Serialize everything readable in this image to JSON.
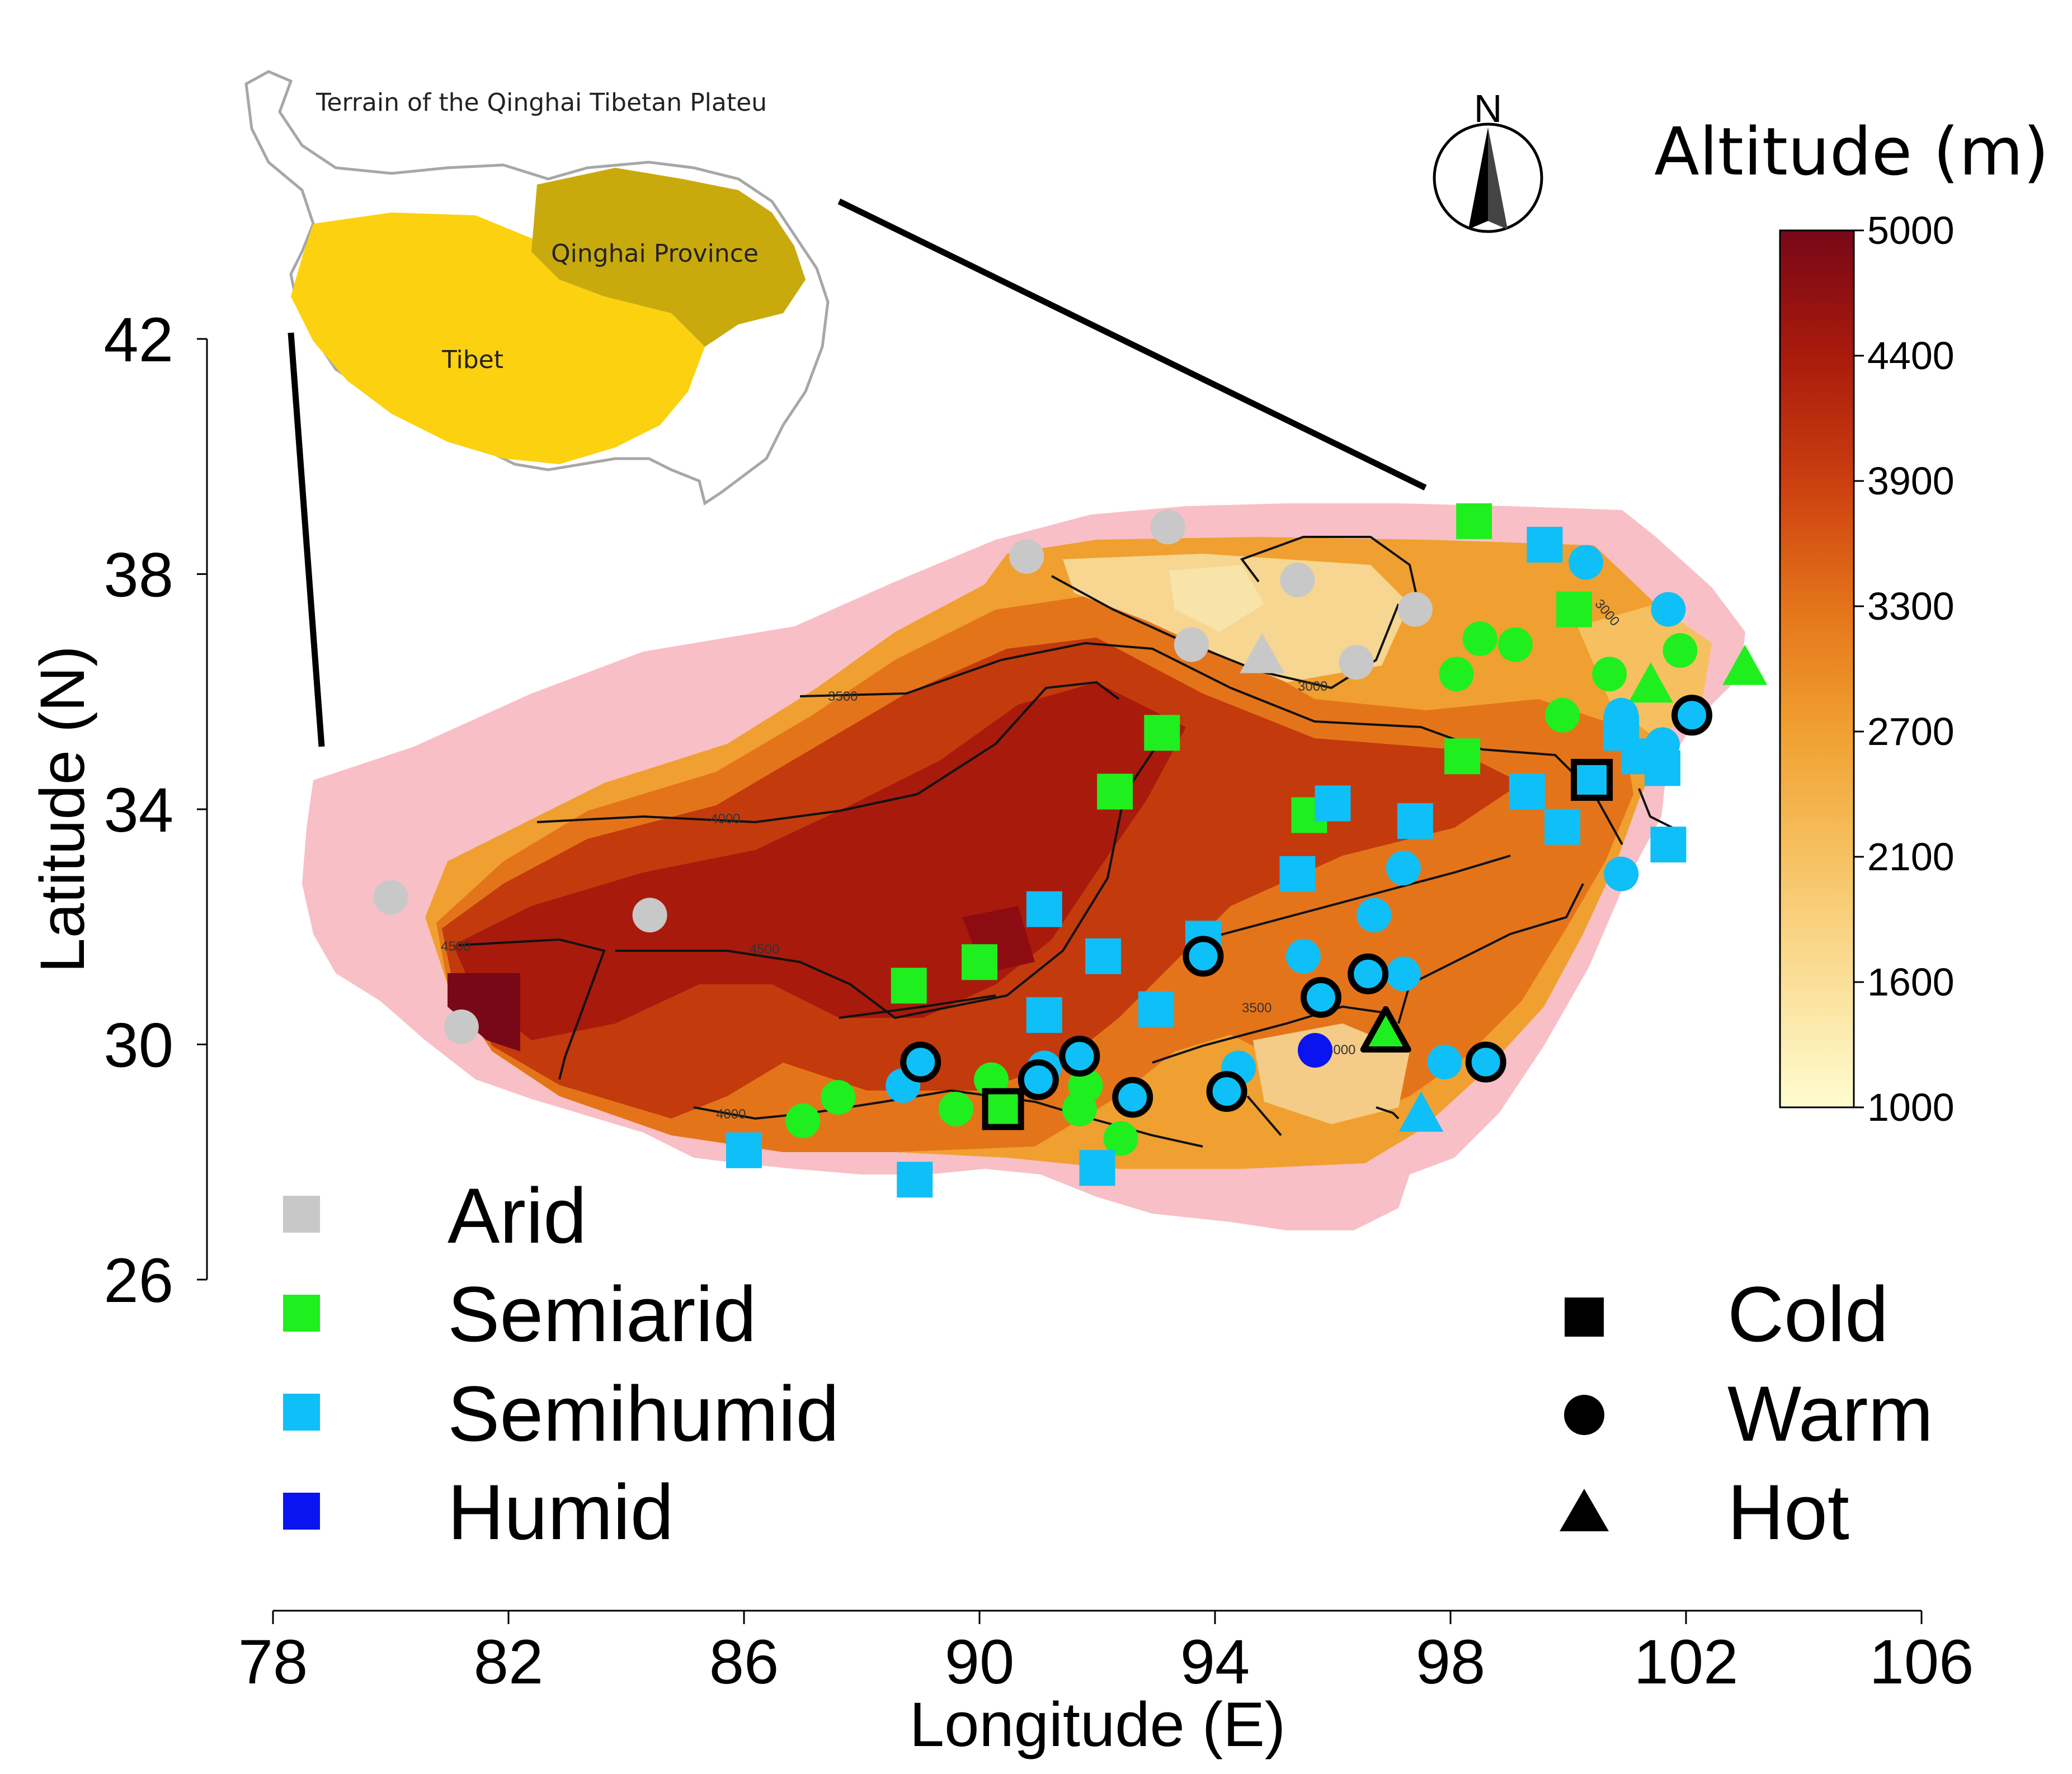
{
  "map": {
    "x_axis": {
      "title": "Longitude (E)",
      "ticks": [
        "78",
        "82",
        "86",
        "90",
        "94",
        "98",
        "102",
        "106"
      ],
      "tick_values": [
        78,
        82,
        86,
        90,
        94,
        98,
        102,
        106
      ]
    },
    "y_axis": {
      "title": "Latitude (N)",
      "ticks": [
        "26",
        "30",
        "34",
        "38",
        "42"
      ],
      "tick_values": [
        26,
        30,
        34,
        38,
        42
      ]
    },
    "colorbar": {
      "title": "Altitude (m)",
      "labels": [
        "1000",
        "1600",
        "2100",
        "2700",
        "3300",
        "3900",
        "4400",
        "5000"
      ],
      "colors": [
        "#fefcd0",
        "#fbe09a",
        "#f6c060",
        "#f0a030",
        "#e4741a",
        "#cc4010",
        "#a81a0c",
        "#780818"
      ]
    },
    "north_arrow_label": "N",
    "contour_labels": [
      "3500",
      "4000",
      "4500",
      "4500",
      "4000",
      "3000",
      "3000",
      "3500",
      "3000"
    ],
    "inset": {
      "title": "Terrain of the Qinghai Tibetan Plateu",
      "regions": [
        {
          "name": "Qinghai Province",
          "color": "#c9aa0c"
        },
        {
          "name": "Tibet",
          "color": "#fcd10f"
        }
      ]
    }
  },
  "legend": {
    "climate": [
      {
        "label": "Arid",
        "color": "#c8c8c8"
      },
      {
        "label": "Semiarid",
        "color": "#1fef1f"
      },
      {
        "label": "Semihumid",
        "color": "#0fbff7"
      },
      {
        "label": "Humid",
        "color": "#0a14f0"
      }
    ],
    "temperature": [
      {
        "label": "Cold",
        "shape": "square"
      },
      {
        "label": "Warm",
        "shape": "circle"
      },
      {
        "label": "Hot",
        "shape": "triangle"
      }
    ]
  },
  "chart_data": {
    "type": "scatter",
    "title": "",
    "xlabel": "Longitude (E)",
    "ylabel": "Latitude (N)",
    "xlim": [
      78,
      106
    ],
    "ylim": [
      26,
      42
    ],
    "stations": [
      {
        "lon": 80.0,
        "lat": 32.5,
        "climate": "Arid",
        "thermal": "Warm"
      },
      {
        "lon": 81.2,
        "lat": 30.3,
        "climate": "Arid",
        "thermal": "Warm"
      },
      {
        "lon": 84.4,
        "lat": 32.2,
        "climate": "Arid",
        "thermal": "Warm"
      },
      {
        "lon": 90.8,
        "lat": 38.3,
        "climate": "Arid",
        "thermal": "Warm"
      },
      {
        "lon": 93.2,
        "lat": 38.8,
        "climate": "Arid",
        "thermal": "Warm"
      },
      {
        "lon": 93.6,
        "lat": 36.8,
        "climate": "Arid",
        "thermal": "Warm"
      },
      {
        "lon": 94.8,
        "lat": 36.6,
        "climate": "Arid",
        "thermal": "Hot"
      },
      {
        "lon": 95.4,
        "lat": 37.9,
        "climate": "Arid",
        "thermal": "Warm"
      },
      {
        "lon": 96.4,
        "lat": 36.5,
        "climate": "Arid",
        "thermal": "Warm"
      },
      {
        "lon": 97.4,
        "lat": 37.4,
        "climate": "Arid",
        "thermal": "Warm"
      },
      {
        "lon": 93.1,
        "lat": 35.3,
        "climate": "Semiarid",
        "thermal": "Cold"
      },
      {
        "lon": 92.3,
        "lat": 34.3,
        "climate": "Semiarid",
        "thermal": "Cold"
      },
      {
        "lon": 98.4,
        "lat": 38.9,
        "climate": "Semiarid",
        "thermal": "Cold"
      },
      {
        "lon": 100.1,
        "lat": 37.4,
        "climate": "Semiarid",
        "thermal": "Cold"
      },
      {
        "lon": 98.2,
        "lat": 34.9,
        "climate": "Semiarid",
        "thermal": "Cold"
      },
      {
        "lon": 95.6,
        "lat": 33.9,
        "climate": "Semiarid",
        "thermal": "Cold"
      },
      {
        "lon": 88.8,
        "lat": 31.0,
        "climate": "Semiarid",
        "thermal": "Cold"
      },
      {
        "lon": 90.0,
        "lat": 31.4,
        "climate": "Semiarid",
        "thermal": "Cold"
      },
      {
        "lon": 90.4,
        "lat": 28.9,
        "climate": "Semiarid",
        "thermal": "Cold",
        "outlined": true
      },
      {
        "lon": 87.0,
        "lat": 28.7,
        "climate": "Semiarid",
        "thermal": "Warm"
      },
      {
        "lon": 87.6,
        "lat": 29.1,
        "climate": "Semiarid",
        "thermal": "Warm"
      },
      {
        "lon": 89.6,
        "lat": 28.9,
        "climate": "Semiarid",
        "thermal": "Warm"
      },
      {
        "lon": 90.2,
        "lat": 29.4,
        "climate": "Semiarid",
        "thermal": "Warm"
      },
      {
        "lon": 91.7,
        "lat": 28.9,
        "climate": "Semiarid",
        "thermal": "Warm"
      },
      {
        "lon": 91.8,
        "lat": 29.3,
        "climate": "Semiarid",
        "thermal": "Warm"
      },
      {
        "lon": 92.4,
        "lat": 28.4,
        "climate": "Semiarid",
        "thermal": "Warm"
      },
      {
        "lon": 98.1,
        "lat": 36.3,
        "climate": "Semiarid",
        "thermal": "Warm"
      },
      {
        "lon": 98.5,
        "lat": 36.9,
        "climate": "Semiarid",
        "thermal": "Warm"
      },
      {
        "lon": 99.1,
        "lat": 36.8,
        "climate": "Semiarid",
        "thermal": "Warm"
      },
      {
        "lon": 99.9,
        "lat": 35.6,
        "climate": "Semiarid",
        "thermal": "Warm"
      },
      {
        "lon": 100.7,
        "lat": 36.3,
        "climate": "Semiarid",
        "thermal": "Warm"
      },
      {
        "lon": 101.9,
        "lat": 36.7,
        "climate": "Semiarid",
        "thermal": "Warm"
      },
      {
        "lon": 101.4,
        "lat": 36.1,
        "climate": "Semiarid",
        "thermal": "Hot"
      },
      {
        "lon": 103.0,
        "lat": 36.4,
        "climate": "Semiarid",
        "thermal": "Hot"
      },
      {
        "lon": 96.9,
        "lat": 30.2,
        "climate": "Semiarid",
        "thermal": "Hot",
        "outlined": true
      },
      {
        "lon": 99.6,
        "lat": 38.5,
        "climate": "Semihumid",
        "thermal": "Cold"
      },
      {
        "lon": 99.3,
        "lat": 34.3,
        "climate": "Semihumid",
        "thermal": "Cold"
      },
      {
        "lon": 99.9,
        "lat": 33.7,
        "climate": "Semihumid",
        "thermal": "Cold"
      },
      {
        "lon": 100.4,
        "lat": 34.5,
        "climate": "Semihumid",
        "thermal": "Cold",
        "outlined": true
      },
      {
        "lon": 96.0,
        "lat": 34.1,
        "climate": "Semihumid",
        "thermal": "Cold"
      },
      {
        "lon": 97.4,
        "lat": 33.8,
        "climate": "Semihumid",
        "thermal": "Cold"
      },
      {
        "lon": 95.4,
        "lat": 32.9,
        "climate": "Semihumid",
        "thermal": "Cold"
      },
      {
        "lon": 91.1,
        "lat": 32.3,
        "climate": "Semihumid",
        "thermal": "Cold"
      },
      {
        "lon": 92.1,
        "lat": 31.5,
        "climate": "Semihumid",
        "thermal": "Cold"
      },
      {
        "lon": 93.0,
        "lat": 30.6,
        "climate": "Semihumid",
        "thermal": "Cold"
      },
      {
        "lon": 93.8,
        "lat": 31.8,
        "climate": "Semihumid",
        "thermal": "Cold"
      },
      {
        "lon": 91.1,
        "lat": 30.5,
        "climate": "Semihumid",
        "thermal": "Cold"
      },
      {
        "lon": 86.0,
        "lat": 28.2,
        "climate": "Semihumid",
        "thermal": "Cold"
      },
      {
        "lon": 88.9,
        "lat": 27.7,
        "climate": "Semihumid",
        "thermal": "Cold"
      },
      {
        "lon": 92.0,
        "lat": 27.9,
        "climate": "Semihumid",
        "thermal": "Cold"
      },
      {
        "lon": 101.7,
        "lat": 33.4,
        "climate": "Semihumid",
        "thermal": "Cold"
      },
      {
        "lon": 101.2,
        "lat": 34.9,
        "climate": "Semihumid",
        "thermal": "Cold"
      },
      {
        "lon": 101.6,
        "lat": 34.7,
        "climate": "Semihumid",
        "thermal": "Cold"
      },
      {
        "lon": 100.9,
        "lat": 35.3,
        "climate": "Semihumid",
        "thermal": "Cold"
      },
      {
        "lon": 100.3,
        "lat": 38.2,
        "climate": "Semihumid",
        "thermal": "Warm"
      },
      {
        "lon": 101.7,
        "lat": 37.4,
        "climate": "Semihumid",
        "thermal": "Warm"
      },
      {
        "lon": 100.9,
        "lat": 35.6,
        "climate": "Semihumid",
        "thermal": "Warm"
      },
      {
        "lon": 101.6,
        "lat": 35.1,
        "climate": "Semihumid",
        "thermal": "Warm"
      },
      {
        "lon": 102.1,
        "lat": 35.6,
        "climate": "Semihumid",
        "thermal": "Warm",
        "outlined": true
      },
      {
        "lon": 100.9,
        "lat": 32.9,
        "climate": "Semihumid",
        "thermal": "Warm"
      },
      {
        "lon": 97.2,
        "lat": 33.0,
        "climate": "Semihumid",
        "thermal": "Warm"
      },
      {
        "lon": 96.7,
        "lat": 32.2,
        "climate": "Semihumid",
        "thermal": "Warm"
      },
      {
        "lon": 95.5,
        "lat": 31.5,
        "climate": "Semihumid",
        "thermal": "Warm"
      },
      {
        "lon": 97.2,
        "lat": 31.2,
        "climate": "Semihumid",
        "thermal": "Warm"
      },
      {
        "lon": 93.8,
        "lat": 31.5,
        "climate": "Semihumid",
        "thermal": "Warm",
        "outlined": true
      },
      {
        "lon": 95.8,
        "lat": 30.8,
        "climate": "Semihumid",
        "thermal": "Warm",
        "outlined": true
      },
      {
        "lon": 96.6,
        "lat": 31.2,
        "climate": "Semihumid",
        "thermal": "Warm",
        "outlined": true
      },
      {
        "lon": 94.4,
        "lat": 29.6,
        "climate": "Semihumid",
        "thermal": "Warm"
      },
      {
        "lon": 94.2,
        "lat": 29.2,
        "climate": "Semihumid",
        "thermal": "Warm",
        "outlined": true
      },
      {
        "lon": 92.6,
        "lat": 29.1,
        "climate": "Semihumid",
        "thermal": "Warm",
        "outlined": true
      },
      {
        "lon": 91.7,
        "lat": 29.8,
        "climate": "Semihumid",
        "thermal": "Warm",
        "outlined": true
      },
      {
        "lon": 91.0,
        "lat": 29.4,
        "climate": "Semihumid",
        "thermal": "Warm",
        "outlined": true
      },
      {
        "lon": 91.1,
        "lat": 29.6,
        "climate": "Semihumid",
        "thermal": "Warm"
      },
      {
        "lon": 89.0,
        "lat": 29.7,
        "climate": "Semihumid",
        "thermal": "Warm",
        "outlined": true
      },
      {
        "lon": 88.7,
        "lat": 29.3,
        "climate": "Semihumid",
        "thermal": "Warm"
      },
      {
        "lon": 97.9,
        "lat": 29.7,
        "climate": "Semihumid",
        "thermal": "Warm"
      },
      {
        "lon": 98.6,
        "lat": 29.7,
        "climate": "Semihumid",
        "thermal": "Warm",
        "outlined": true
      },
      {
        "lon": 97.5,
        "lat": 28.8,
        "climate": "Semihumid",
        "thermal": "Hot"
      },
      {
        "lon": 95.7,
        "lat": 29.9,
        "climate": "Humid",
        "thermal": "Warm"
      }
    ]
  }
}
